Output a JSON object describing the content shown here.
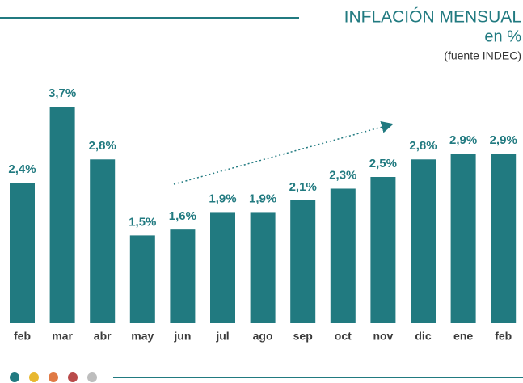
{
  "chart_data": {
    "type": "bar",
    "title": "INFLACIÓN MENSUAL",
    "subtitle": "en %",
    "source": "(fuente INDEC)",
    "categories": [
      "feb",
      "mar",
      "abr",
      "may",
      "jun",
      "jul",
      "ago",
      "sep",
      "oct",
      "nov",
      "dic",
      "ene",
      "feb"
    ],
    "values": [
      2.4,
      3.7,
      2.8,
      1.5,
      1.6,
      1.9,
      1.9,
      2.1,
      2.3,
      2.5,
      2.8,
      2.9,
      2.9
    ],
    "value_labels": [
      "2,4%",
      "3,7%",
      "2,8%",
      "1,5%",
      "1,6%",
      "1,9%",
      "1,9%",
      "2,1%",
      "2,3%",
      "2,5%",
      "2,8%",
      "2,9%",
      "2,9%"
    ],
    "color": "#217a80"
  }
}
